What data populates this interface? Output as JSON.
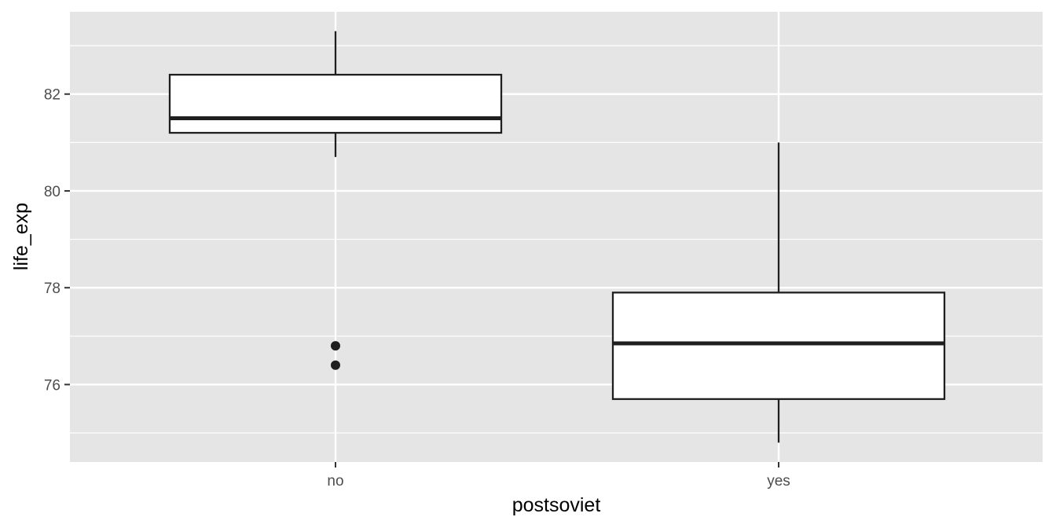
{
  "chart_data": {
    "type": "boxplot",
    "title": "",
    "xlabel": "postsoviet",
    "ylabel": "life_exp",
    "categories": [
      "no",
      "yes"
    ],
    "ylim": [
      74.4,
      83.7
    ],
    "yticks": [
      76,
      78,
      80,
      82
    ],
    "ytick_labels": [
      "76",
      "78",
      "80",
      "82"
    ],
    "grid": true,
    "boxes": [
      {
        "category": "no",
        "whisker_low": 80.7,
        "q1": 81.2,
        "median": 81.5,
        "q3": 82.4,
        "whisker_high": 83.3,
        "outliers": [
          76.8,
          76.4
        ]
      },
      {
        "category": "yes",
        "whisker_low": 74.8,
        "q1": 75.7,
        "median": 76.85,
        "q3": 77.9,
        "whisker_high": 81.0,
        "outliers": []
      }
    ],
    "colors": {
      "panel_background": "#e5e5e5",
      "gridline": "#ffffff",
      "box_fill": "#ffffff",
      "box_stroke": "#1f1f1f",
      "outlier": "#1f1f1f"
    }
  }
}
